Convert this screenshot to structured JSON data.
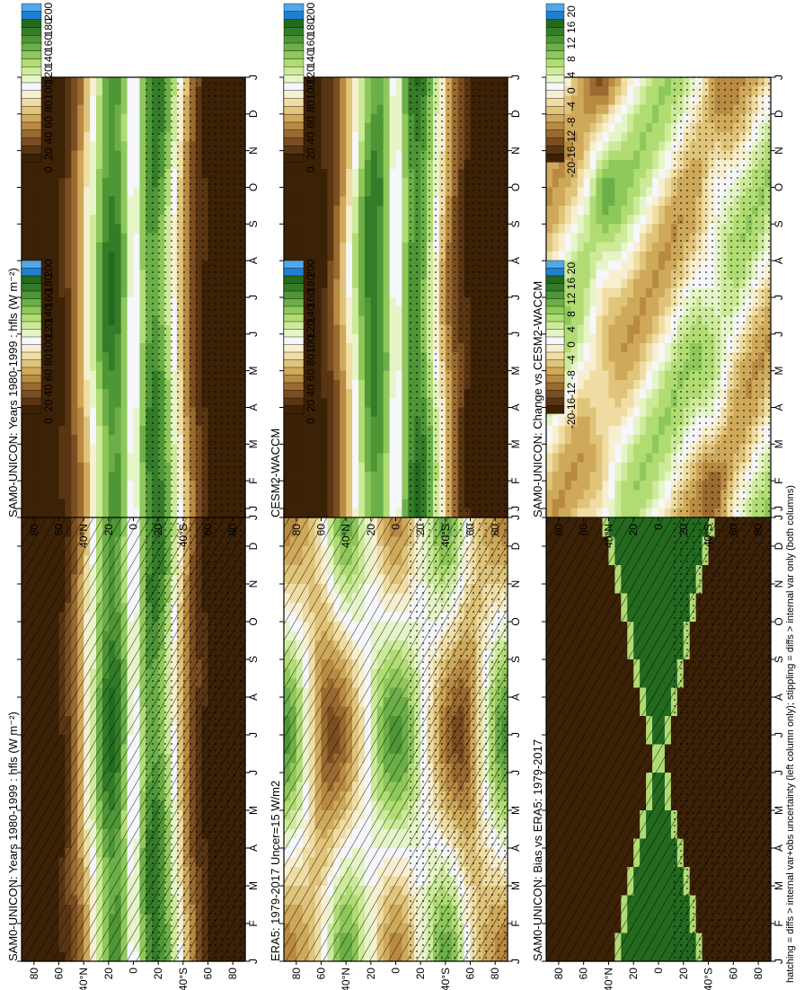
{
  "figure": {
    "footnote": "hatching = diffs > internal var+obs uncertainty (left column only); stippling = diffs > internal var only (both columns)",
    "months": [
      "J",
      "F",
      "M",
      "A",
      "M",
      "J",
      "J",
      "A",
      "S",
      "O",
      "N",
      "D",
      "J"
    ],
    "lat_ticks": [
      "80",
      "60",
      "40°N",
      "20",
      "0",
      "20",
      "40°S",
      "60",
      "80"
    ]
  },
  "colors": {
    "mean_palette": [
      "#3b2106",
      "#5a3513",
      "#7b4e21",
      "#9a6a30",
      "#b98a42",
      "#cfa95a",
      "#e0c47a",
      "#efdda4",
      "#f8efd0",
      "#f5f7fb",
      "#e6f5c8",
      "#cdea9a",
      "#b0dc73",
      "#8ec85a",
      "#6caf48",
      "#4e9636",
      "#347c28",
      "#236a1f",
      "#1f7fd1",
      "#52a7e8"
    ],
    "diff_palette": [
      "#3b2106",
      "#5a3513",
      "#7b4e21",
      "#9a6a30",
      "#b98a42",
      "#cfa95a",
      "#e0c47a",
      "#efdda4",
      "#f8efd0",
      "#f5f7fb",
      "#e6f5c8",
      "#cdea9a",
      "#b0dc73",
      "#8ec85a",
      "#6caf48",
      "#4e9636",
      "#347c28",
      "#236a1f",
      "#1f7fd1",
      "#52a7e8"
    ]
  },
  "chart_data": [
    {
      "type": "heatmap",
      "title": "SAM0-UNICON: Years 1980-1999 : hfls (W m⁻²)",
      "x": [
        "J",
        "F",
        "M",
        "A",
        "M",
        "J",
        "J",
        "A",
        "S",
        "O",
        "N",
        "D",
        "J"
      ],
      "y": [
        "80N",
        "60N",
        "40N",
        "20N",
        "0",
        "20S",
        "40S",
        "60S",
        "80S"
      ],
      "colorbar_ticks": [
        "200",
        "180",
        "160",
        "140",
        "120",
        "100",
        "80",
        "60",
        "40",
        "20",
        "0"
      ],
      "range": [
        0,
        200
      ],
      "hatching": true,
      "stippling": true
    },
    {
      "type": "heatmap",
      "title": "ERA5: 1979-2017 Uncer=15 W/m2",
      "x": [
        "J",
        "F",
        "M",
        "A",
        "M",
        "J",
        "J",
        "A",
        "S",
        "O",
        "N",
        "D",
        "J"
      ],
      "y": [
        "80N",
        "60N",
        "40N",
        "20N",
        "0",
        "20S",
        "40S",
        "60S",
        "80S"
      ],
      "colorbar_ticks": [
        "200",
        "180",
        "160",
        "140",
        "120",
        "100",
        "80",
        "60",
        "40",
        "20",
        "0"
      ],
      "range": [
        0,
        200
      ],
      "hatching": true,
      "stippling": true
    },
    {
      "type": "heatmap",
      "title": "SAM0-UNICON: Bias vs ERA5: 1979-2017",
      "x": [
        "J",
        "F",
        "M",
        "A",
        "M",
        "J",
        "J",
        "A",
        "S",
        "O",
        "N",
        "D",
        "J"
      ],
      "y": [
        "80N",
        "60N",
        "40N",
        "20N",
        "0",
        "20S",
        "40S",
        "60S",
        "80S"
      ],
      "colorbar_ticks": [
        "20",
        "16",
        "12",
        "8",
        "4",
        "0",
        "-4",
        "-8",
        "-12",
        "-16",
        "-20"
      ],
      "range": [
        -20,
        20
      ],
      "hatching": true,
      "stippling": true
    },
    {
      "type": "heatmap",
      "title": "SAM0-UNICON: Years 1980-1999 : hfls (W m⁻²)",
      "x": [
        "J",
        "F",
        "M",
        "A",
        "M",
        "J",
        "J",
        "A",
        "S",
        "O",
        "N",
        "D",
        "J"
      ],
      "y": [
        "80N",
        "60N",
        "40N",
        "20N",
        "0",
        "20S",
        "40S",
        "60S",
        "80S"
      ],
      "colorbar_ticks": [
        "200",
        "180",
        "160",
        "140",
        "120",
        "100",
        "80",
        "60",
        "40",
        "20",
        "0"
      ],
      "range": [
        0,
        200
      ],
      "hatching": false,
      "stippling": true
    },
    {
      "type": "heatmap",
      "title": "CESM2-WACCM",
      "x": [
        "J",
        "F",
        "M",
        "A",
        "M",
        "J",
        "J",
        "A",
        "S",
        "O",
        "N",
        "D",
        "J"
      ],
      "y": [
        "80N",
        "60N",
        "40N",
        "20N",
        "0",
        "20S",
        "40S",
        "60S",
        "80S"
      ],
      "colorbar_ticks": [
        "200",
        "180",
        "160",
        "140",
        "120",
        "100",
        "80",
        "60",
        "40",
        "20",
        "0"
      ],
      "range": [
        0,
        200
      ],
      "hatching": false,
      "stippling": true
    },
    {
      "type": "heatmap",
      "title": "SAM0-UNICON: Change vs CESM2-WACCM",
      "x": [
        "J",
        "F",
        "M",
        "A",
        "M",
        "J",
        "J",
        "A",
        "S",
        "O",
        "N",
        "D",
        "J"
      ],
      "y": [
        "80N",
        "60N",
        "40N",
        "20N",
        "0",
        "20S",
        "40S",
        "60S",
        "80S"
      ],
      "colorbar_ticks": [
        "20",
        "16",
        "12",
        "8",
        "4",
        "0",
        "-4",
        "-8",
        "-12",
        "-16",
        "-20"
      ],
      "range": [
        -20,
        20
      ],
      "hatching": false,
      "stippling": true
    }
  ]
}
